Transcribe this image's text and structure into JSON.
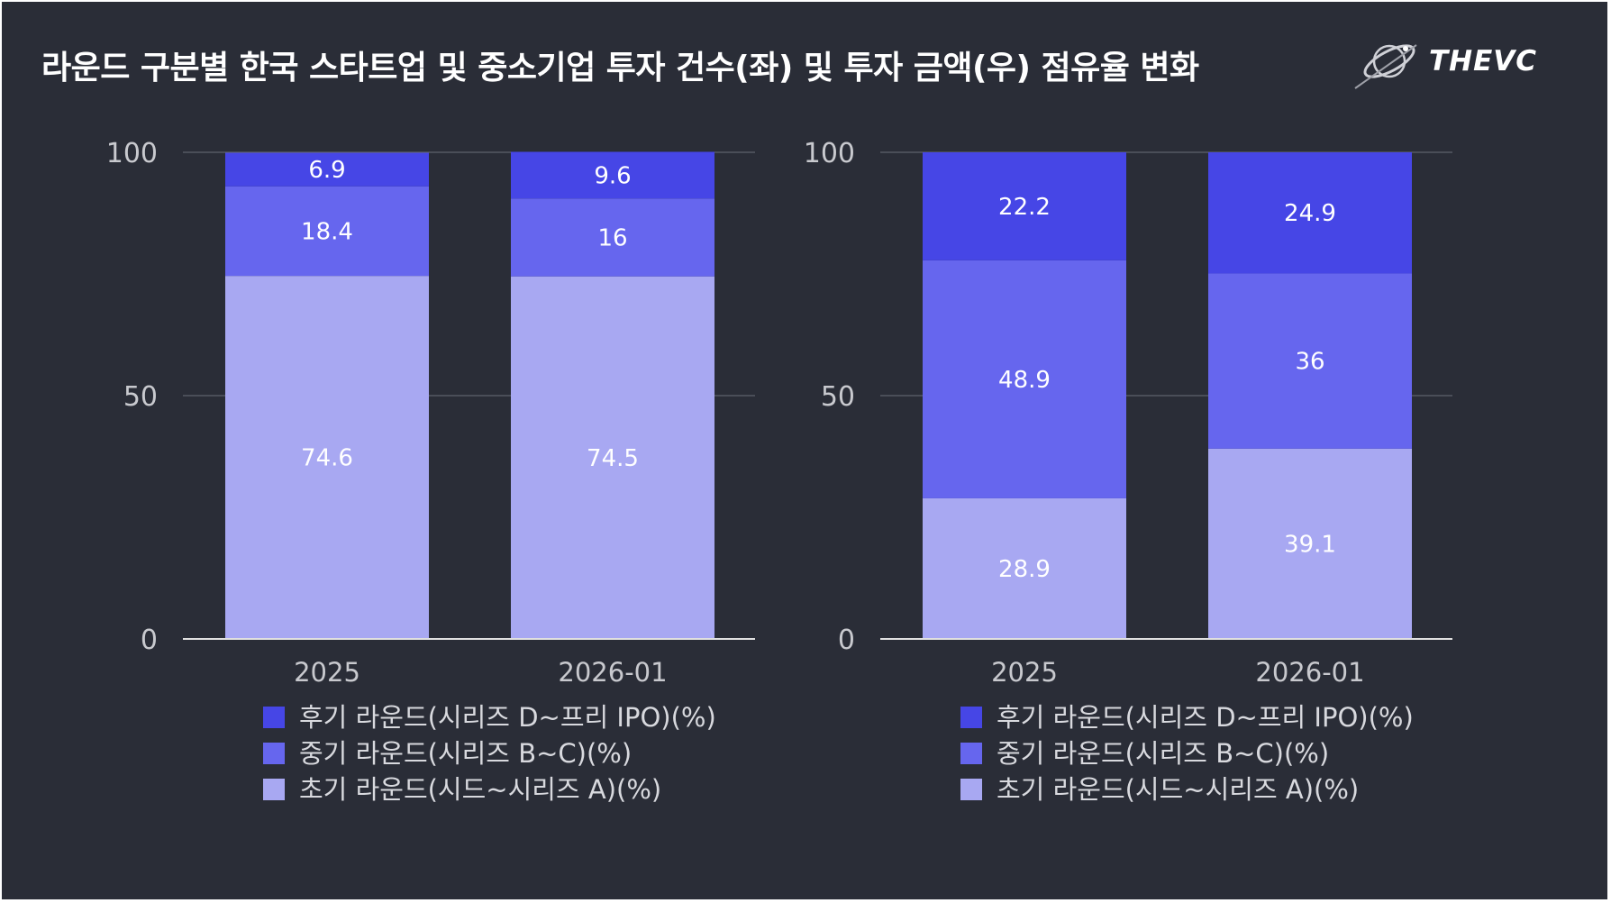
{
  "title": "라운드 구분별 한국 스타트업 및 중소기업 투자 건수(좌) 및 투자 금액(우) 점유율 변화",
  "logo": {
    "text": "THEVC",
    "icon": "orbit-logo-icon"
  },
  "colors": {
    "background": "#2a2d37",
    "late": "#4646e6",
    "mid": "#6666ee",
    "early": "#a8a8f2",
    "grid": "#6b6e78",
    "axis": "#e0e0e0"
  },
  "chart_data": [
    {
      "type": "bar",
      "stacked": true,
      "categories": [
        "2025",
        "2026-01"
      ],
      "ylim": [
        0,
        100
      ],
      "yticks": [
        "0",
        "50",
        "100"
      ],
      "legend_position": "bottom",
      "series": [
        {
          "name": "초기 라운드(시드~시리즈 A)(%)",
          "values": [
            74.6,
            74.5
          ],
          "labels": [
            "74.6",
            "74.5"
          ]
        },
        {
          "name": "중기 라운드(시리즈 B~C)(%)",
          "values": [
            18.4,
            16
          ],
          "labels": [
            "18.4",
            "16"
          ]
        },
        {
          "name": "후기 라운드(시리즈 D~프리 IPO)(%)",
          "values": [
            6.9,
            9.6
          ],
          "labels": [
            "6.9",
            "9.6"
          ]
        }
      ]
    },
    {
      "type": "bar",
      "stacked": true,
      "categories": [
        "2025",
        "2026-01"
      ],
      "ylim": [
        0,
        100
      ],
      "yticks": [
        "0",
        "50",
        "100"
      ],
      "legend_position": "bottom",
      "series": [
        {
          "name": "초기 라운드(시드~시리즈 A)(%)",
          "values": [
            28.9,
            39.1
          ],
          "labels": [
            "28.9",
            "39.1"
          ]
        },
        {
          "name": "중기 라운드(시리즈 B~C)(%)",
          "values": [
            48.9,
            36
          ],
          "labels": [
            "48.9",
            "36"
          ]
        },
        {
          "name": "후기 라운드(시리즈 D~프리 IPO)(%)",
          "values": [
            22.2,
            24.9
          ],
          "labels": [
            "22.2",
            "24.9"
          ]
        }
      ]
    }
  ]
}
